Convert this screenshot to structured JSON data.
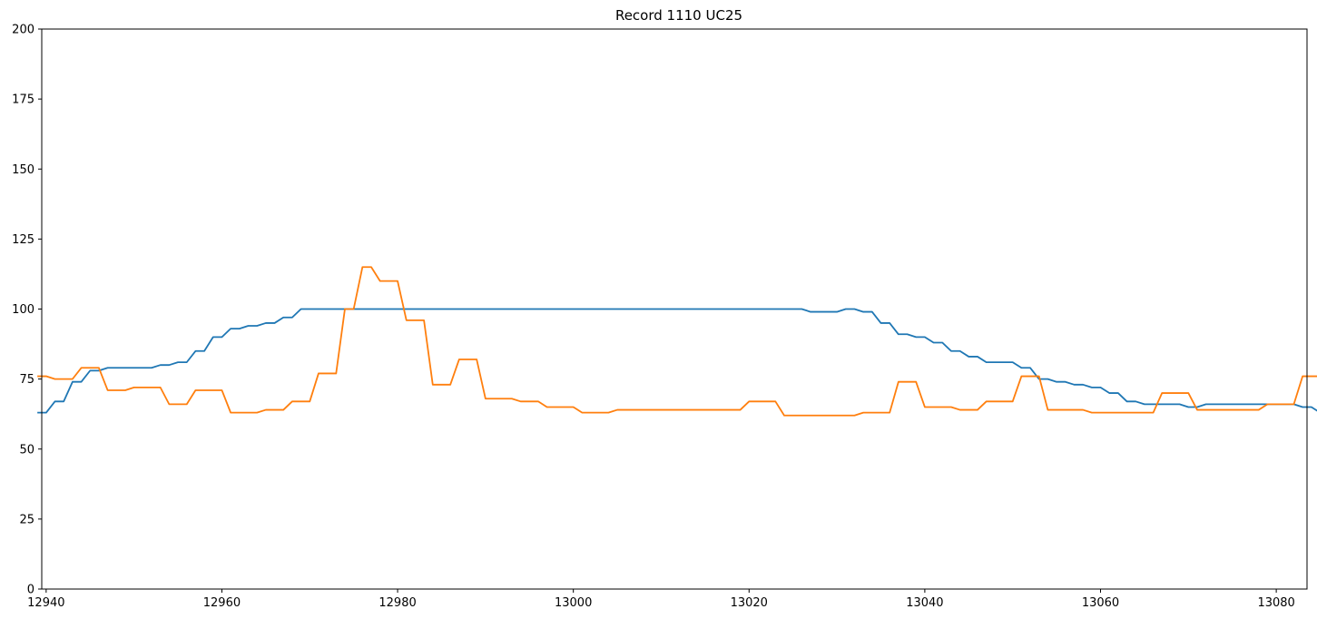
{
  "chart_data": {
    "type": "line",
    "title": "Record 1110 UC25",
    "xlabel": "",
    "ylabel": "",
    "xlim": [
      12939.5,
      13083.5
    ],
    "ylim": [
      0,
      200
    ],
    "xticks": [
      12940,
      12960,
      12980,
      13000,
      13020,
      13040,
      13060,
      13080
    ],
    "yticks": [
      0,
      25,
      50,
      75,
      100,
      125,
      150,
      175,
      200
    ],
    "grid": false,
    "colors": [
      "#1f77b4",
      "#ff7f0e"
    ],
    "x_start": 12939,
    "x_step": 1,
    "series": [
      {
        "values": [
          63,
          63,
          67,
          67,
          74,
          74,
          78,
          78,
          79,
          79,
          79,
          79,
          79,
          79,
          80,
          80,
          81,
          81,
          85,
          85,
          90,
          90,
          93,
          93,
          94,
          94,
          95,
          95,
          97,
          97,
          100,
          100,
          100,
          100,
          100,
          100,
          100,
          100,
          100,
          100,
          100,
          100,
          100,
          100,
          100,
          100,
          100,
          100,
          100,
          100,
          100,
          100,
          100,
          100,
          100,
          100,
          100,
          100,
          100,
          100,
          100,
          100,
          100,
          100,
          100,
          100,
          100,
          100,
          100,
          100,
          100,
          100,
          100,
          100,
          100,
          100,
          100,
          100,
          100,
          100,
          100,
          100,
          100,
          100,
          100,
          100,
          100,
          100,
          99,
          99,
          99,
          99,
          100,
          100,
          99,
          99,
          95,
          95,
          91,
          91,
          90,
          90,
          88,
          88,
          85,
          85,
          83,
          83,
          81,
          81,
          81,
          81,
          79,
          79,
          75,
          75,
          74,
          74,
          73,
          73,
          72,
          72,
          70,
          70,
          67,
          67,
          66,
          66,
          66,
          66,
          66,
          65,
          65,
          66,
          66,
          66,
          66,
          66,
          66,
          66,
          66,
          66,
          66,
          66,
          65,
          65,
          63
        ]
      },
      {
        "values": [
          76,
          76,
          75,
          75,
          75,
          79,
          79,
          79,
          71,
          71,
          71,
          72,
          72,
          72,
          72,
          66,
          66,
          66,
          71,
          71,
          71,
          71,
          63,
          63,
          63,
          63,
          64,
          64,
          64,
          67,
          67,
          67,
          77,
          77,
          77,
          100,
          100,
          115,
          115,
          110,
          110,
          110,
          96,
          96,
          96,
          73,
          73,
          73,
          82,
          82,
          82,
          68,
          68,
          68,
          68,
          67,
          67,
          67,
          65,
          65,
          65,
          65,
          63,
          63,
          63,
          63,
          64,
          64,
          64,
          64,
          64,
          64,
          64,
          64,
          64,
          64,
          64,
          64,
          64,
          64,
          64,
          67,
          67,
          67,
          67,
          62,
          62,
          62,
          62,
          62,
          62,
          62,
          62,
          62,
          63,
          63,
          63,
          63,
          74,
          74,
          74,
          65,
          65,
          65,
          65,
          64,
          64,
          64,
          67,
          67,
          67,
          67,
          76,
          76,
          76,
          64,
          64,
          64,
          64,
          64,
          63,
          63,
          63,
          63,
          63,
          63,
          63,
          63,
          70,
          70,
          70,
          70,
          64,
          64,
          64,
          64,
          64,
          64,
          64,
          64,
          66,
          66,
          66,
          66,
          76,
          76,
          76,
          76,
          66,
          66,
          66,
          66,
          66,
          67
        ]
      }
    ]
  }
}
